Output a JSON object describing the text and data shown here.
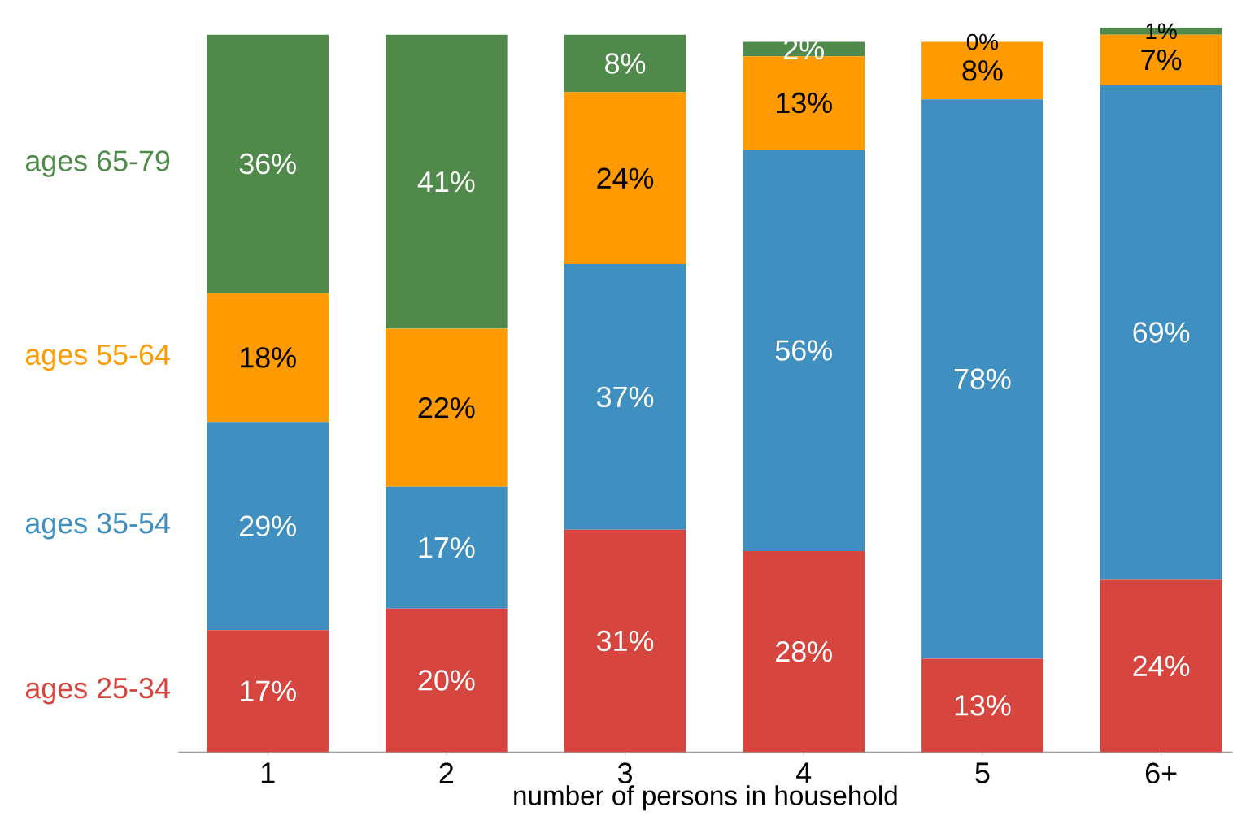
{
  "chart_data": {
    "type": "bar",
    "stacked": true,
    "xlabel": "number of persons in household",
    "categories": [
      "1",
      "2",
      "3",
      "4",
      "5",
      "6+"
    ],
    "series": [
      {
        "name": "ages 25-34",
        "color": "#d6463f",
        "values": [
          17,
          20,
          31,
          28,
          13,
          24
        ],
        "value_labels": [
          "17%",
          "20%",
          "31%",
          "28%",
          "13%",
          "24%"
        ]
      },
      {
        "name": "ages 35-54",
        "color": "#3f8fc0",
        "values": [
          29,
          17,
          37,
          56,
          78,
          69
        ],
        "value_labels": [
          "29%",
          "17%",
          "37%",
          "56%",
          "78%",
          "69%"
        ]
      },
      {
        "name": "ages 55-64",
        "color": "#ff9a00",
        "values": [
          18,
          22,
          24,
          13,
          8,
          7
        ],
        "value_labels": [
          "18%",
          "22%",
          "24%",
          "13%",
          "8%",
          "7%"
        ]
      },
      {
        "name": "ages 65-79",
        "color": "#4f8a4b",
        "values": [
          36,
          41,
          8,
          2,
          0,
          1
        ],
        "value_labels": [
          "36%",
          "41%",
          "8%",
          "2%",
          "0%",
          "1%"
        ]
      }
    ]
  }
}
